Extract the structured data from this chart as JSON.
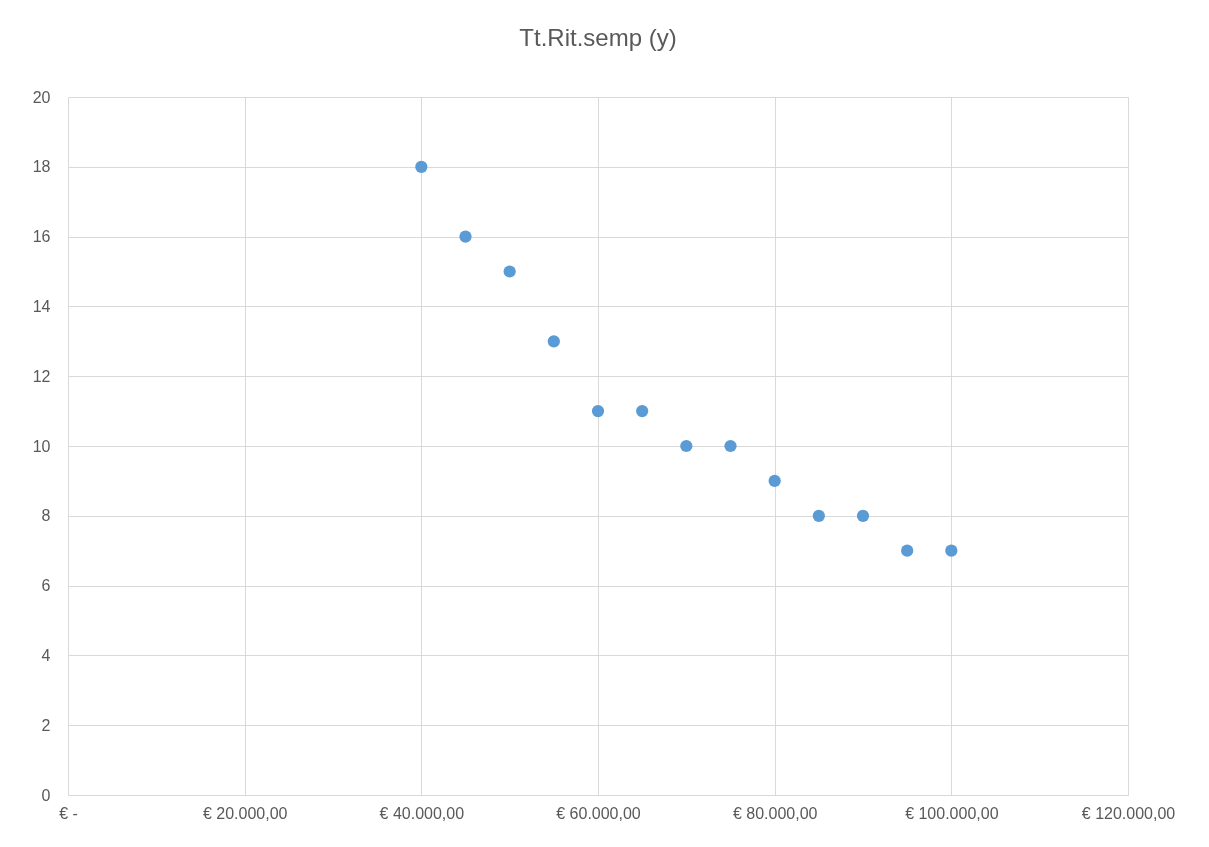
{
  "chart_data": {
    "type": "scatter",
    "title": "Tt.Rit.semp (y)",
    "x": [
      40000,
      45000,
      50000,
      55000,
      60000,
      65000,
      70000,
      75000,
      80000,
      85000,
      90000,
      95000,
      100000
    ],
    "series": [
      {
        "color": "#5b9bd5",
        "values": [
          18,
          16,
          15,
          13,
          11,
          11,
          10,
          10,
          9,
          8,
          8,
          7,
          7
        ]
      }
    ],
    "xlim": [
      0,
      120000
    ],
    "xticks": [
      {
        "value": 0,
        "label": "€ -"
      },
      {
        "value": 20000,
        "label": "€ 20.000,00"
      },
      {
        "value": 40000,
        "label": "€ 40.000,00"
      },
      {
        "value": 60000,
        "label": "€ 60.000,00"
      },
      {
        "value": 80000,
        "label": "€ 80.000,00"
      },
      {
        "value": 100000,
        "label": "€ 100.000,00"
      },
      {
        "value": 120000,
        "label": "€ 120.000,00"
      }
    ],
    "ylim": [
      0,
      20
    ],
    "yticks": [
      0,
      2,
      4,
      6,
      8,
      10,
      12,
      14,
      16,
      18,
      20
    ],
    "grid": true,
    "marker": "circle"
  }
}
